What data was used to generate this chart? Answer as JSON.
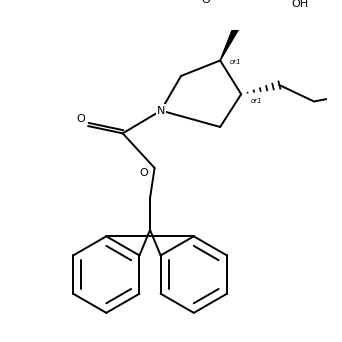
{
  "background_color": "#ffffff",
  "line_color": "#000000",
  "line_width": 1.4,
  "fig_width": 3.42,
  "fig_height": 3.42,
  "dpi": 100,
  "font_size": 7.0,
  "label_or1": "or1",
  "label_O": "O",
  "label_OH": "OH",
  "label_N": "N"
}
